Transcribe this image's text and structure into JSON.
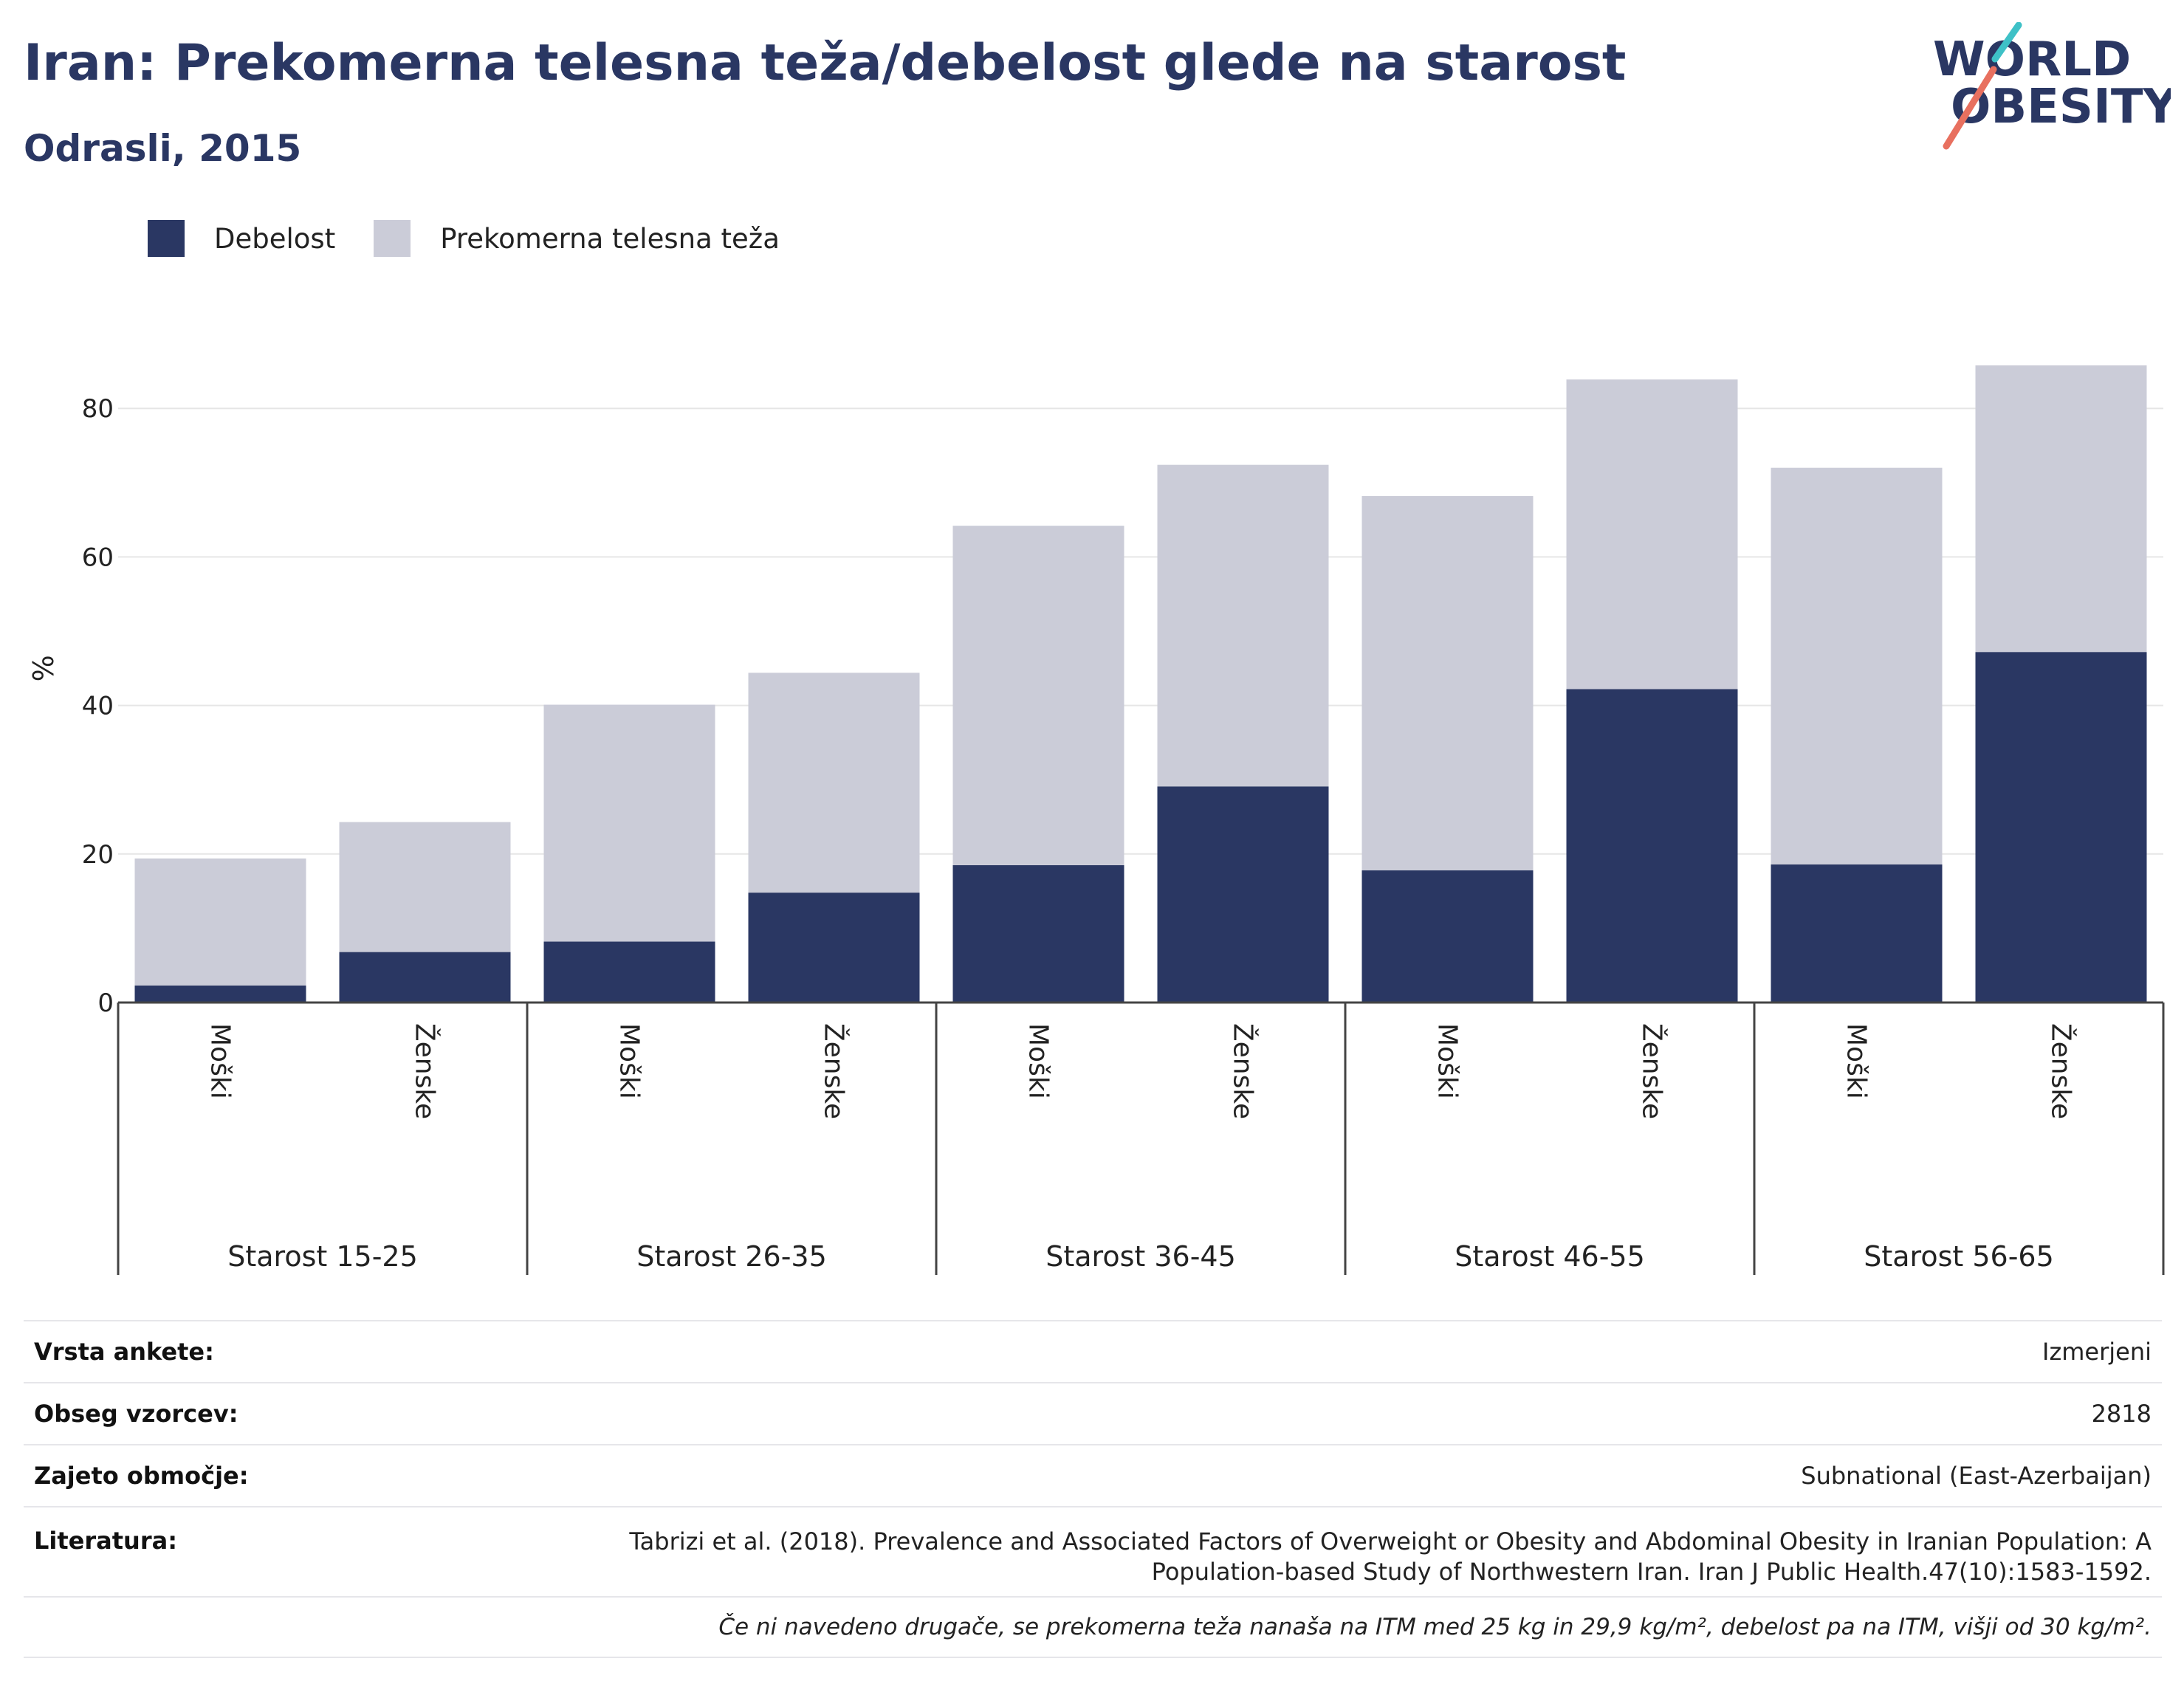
{
  "header": {
    "title": "Iran: Prekomerna telesna teža/debelost glede na starost",
    "subtitle": "Odrasli, 2015"
  },
  "logo": {
    "line1": "WORLD",
    "line2": "OBESITY"
  },
  "colors": {
    "obesity": "#2a3763",
    "overweight": "#cbccd8",
    "title": "#2a3763",
    "logo_teal": "#3ec1c7",
    "logo_red": "#e8705f"
  },
  "legend": [
    {
      "label": "Debelost",
      "color": "#2a3763"
    },
    {
      "label": "Prekomerna telesna teža",
      "color": "#cbccd8"
    }
  ],
  "chart_data": {
    "type": "bar",
    "stacked": true,
    "title": "Iran: Prekomerna telesna teža/debelost glede na starost",
    "subtitle": "Odrasli, 2015",
    "ylabel": "%",
    "ylim": [
      0,
      90
    ],
    "yticks": [
      0,
      20,
      40,
      60,
      80
    ],
    "grid": true,
    "legend_position": "top-left",
    "groups": [
      "Starost 15-25",
      "Starost 26-35",
      "Starost 36-45",
      "Starost 46-55",
      "Starost 56-65"
    ],
    "categories": [
      "Moški",
      "Ženske",
      "Moški",
      "Ženske",
      "Moški",
      "Ženske",
      "Moški",
      "Ženske",
      "Moški",
      "Ženske"
    ],
    "series": [
      {
        "name": "Debelost",
        "values": [
          2.3,
          6.8,
          8.2,
          14.8,
          18.5,
          29.1,
          17.8,
          42.2,
          18.6,
          47.2
        ]
      },
      {
        "name": "Prekomerna telesna teža",
        "values": [
          17.1,
          17.5,
          31.9,
          29.6,
          45.7,
          43.3,
          50.4,
          41.7,
          53.4,
          38.6
        ]
      }
    ]
  },
  "meta": {
    "survey_type": {
      "label": "Vrsta ankete:",
      "value": "Izmerjeni"
    },
    "sample_size": {
      "label": "Obseg vzorcev:",
      "value": "2818"
    },
    "area": {
      "label": "Zajeto območje:",
      "value": "Subnational (East-Azerbaijan)"
    },
    "reference": {
      "label": "Literatura:",
      "line1": "Tabrizi et al. (2018). Prevalence and Associated Factors of Overweight or Obesity and Abdominal Obesity in Iranian Population: A",
      "line2": "Population-based Study of Northwestern Iran. Iran J Public Health.47(10):1583-1592."
    },
    "note": "Če ni navedeno drugače, se prekomerna teža nanaša na ITM med 25 kg in 29,9 kg/m², debelost pa na ITM, višji od 30 kg/m²."
  }
}
